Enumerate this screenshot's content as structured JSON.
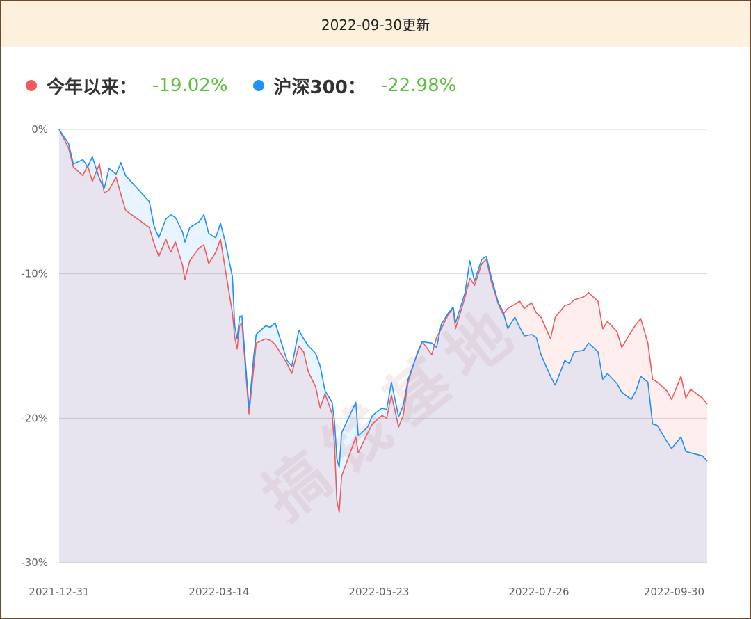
{
  "header": {
    "title": "2022-09-30更新"
  },
  "legend": [
    {
      "label": "今年以来：",
      "value": "-19.02%",
      "color": "#f25b5b"
    },
    {
      "label": "沪深300：",
      "value": "-22.98%",
      "color": "#1e90ff"
    }
  ],
  "watermark": "搞钱基地",
  "colors": {
    "value_text": "#5cbf3d",
    "grid": "#d8d8d8",
    "axis_text": "#666666"
  },
  "chart_data": {
    "type": "line",
    "title": "",
    "xlabel": "",
    "ylabel": "",
    "y_unit": "%",
    "ylim": [
      -30,
      0
    ],
    "y_ticks": [
      0,
      -10,
      -20,
      -30
    ],
    "y_tick_labels": [
      "0%",
      "-10%",
      "-20%",
      "-30%"
    ],
    "x_tick_labels": [
      "2021-12-31",
      "2022-03-14",
      "2022-05-23",
      "2022-07-26",
      "2022-09-30"
    ],
    "x_range": [
      "2021-12-31",
      "2022-09-30"
    ],
    "grid": true,
    "legend_position": "top-left",
    "series": [
      {
        "name": "今年以来",
        "color": "#f25b5b",
        "points": [
          [
            "2021-12-31",
            0.0
          ],
          [
            "2022-01-04",
            -1.3
          ],
          [
            "2022-01-06",
            -2.6
          ],
          [
            "2022-01-10",
            -3.2
          ],
          [
            "2022-01-12",
            -2.5
          ],
          [
            "2022-01-14",
            -3.6
          ],
          [
            "2022-01-17",
            -2.4
          ],
          [
            "2022-01-19",
            -4.4
          ],
          [
            "2022-01-21",
            -4.2
          ],
          [
            "2022-01-24",
            -3.3
          ],
          [
            "2022-01-26",
            -4.5
          ],
          [
            "2022-01-28",
            -5.6
          ],
          [
            "2022-02-07",
            -6.8
          ],
          [
            "2022-02-09",
            -7.9
          ],
          [
            "2022-02-11",
            -8.8
          ],
          [
            "2022-02-14",
            -7.6
          ],
          [
            "2022-02-16",
            -8.5
          ],
          [
            "2022-02-18",
            -7.8
          ],
          [
            "2022-02-21",
            -9.4
          ],
          [
            "2022-02-22",
            -10.4
          ],
          [
            "2022-02-24",
            -9.1
          ],
          [
            "2022-02-28",
            -8.2
          ],
          [
            "2022-03-02",
            -8.0
          ],
          [
            "2022-03-04",
            -9.3
          ],
          [
            "2022-03-07",
            -8.5
          ],
          [
            "2022-03-09",
            -7.6
          ],
          [
            "2022-03-11",
            -9.7
          ],
          [
            "2022-03-14",
            -12.7
          ],
          [
            "2022-03-15",
            -14.4
          ],
          [
            "2022-03-16",
            -15.2
          ],
          [
            "2022-03-17",
            -13.6
          ],
          [
            "2022-03-18",
            -13.4
          ],
          [
            "2022-03-21",
            -19.7
          ],
          [
            "2022-03-23",
            -16.5
          ],
          [
            "2022-03-24",
            -14.8
          ],
          [
            "2022-03-28",
            -14.5
          ],
          [
            "2022-03-30",
            -14.6
          ],
          [
            "2022-04-01",
            -14.9
          ],
          [
            "2022-04-06",
            -16.2
          ],
          [
            "2022-04-08",
            -16.9
          ],
          [
            "2022-04-11",
            -15.0
          ],
          [
            "2022-04-13",
            -15.4
          ],
          [
            "2022-04-15",
            -16.8
          ],
          [
            "2022-04-18",
            -17.8
          ],
          [
            "2022-04-20",
            -19.3
          ],
          [
            "2022-04-22",
            -18.3
          ],
          [
            "2022-04-25",
            -19.7
          ],
          [
            "2022-04-26",
            -21.8
          ],
          [
            "2022-04-27",
            -25.7
          ],
          [
            "2022-04-28",
            -26.5
          ],
          [
            "2022-04-29",
            -24.0
          ],
          [
            "2022-05-05",
            -21.3
          ],
          [
            "2022-05-06",
            -22.4
          ],
          [
            "2022-05-10",
            -21.0
          ],
          [
            "2022-05-12",
            -20.4
          ],
          [
            "2022-05-16",
            -19.8
          ],
          [
            "2022-05-18",
            -20.0
          ],
          [
            "2022-05-20",
            -18.4
          ],
          [
            "2022-05-23",
            -20.6
          ],
          [
            "2022-05-25",
            -19.8
          ],
          [
            "2022-05-27",
            -17.5
          ],
          [
            "2022-05-31",
            -15.4
          ],
          [
            "2022-06-02",
            -14.7
          ],
          [
            "2022-06-06",
            -15.6
          ],
          [
            "2022-06-08",
            -14.4
          ],
          [
            "2022-06-10",
            -13.8
          ],
          [
            "2022-06-13",
            -12.8
          ],
          [
            "2022-06-15",
            -12.4
          ],
          [
            "2022-06-16",
            -13.8
          ],
          [
            "2022-06-20",
            -11.6
          ],
          [
            "2022-06-22",
            -10.3
          ],
          [
            "2022-06-24",
            -10.8
          ],
          [
            "2022-06-27",
            -9.3
          ],
          [
            "2022-06-29",
            -9.0
          ],
          [
            "2022-07-01",
            -10.5
          ],
          [
            "2022-07-04",
            -12.1
          ],
          [
            "2022-07-06",
            -12.8
          ],
          [
            "2022-07-08",
            -12.4
          ],
          [
            "2022-07-11",
            -12.1
          ],
          [
            "2022-07-13",
            -11.9
          ],
          [
            "2022-07-15",
            -12.4
          ],
          [
            "2022-07-18",
            -12.0
          ],
          [
            "2022-07-20",
            -12.7
          ],
          [
            "2022-07-22",
            -13.0
          ],
          [
            "2022-07-26",
            -14.5
          ],
          [
            "2022-07-28",
            -13.0
          ],
          [
            "2022-08-01",
            -12.2
          ],
          [
            "2022-08-03",
            -12.1
          ],
          [
            "2022-08-05",
            -11.8
          ],
          [
            "2022-08-09",
            -11.6
          ],
          [
            "2022-08-11",
            -11.3
          ],
          [
            "2022-08-15",
            -11.9
          ],
          [
            "2022-08-17",
            -13.8
          ],
          [
            "2022-08-19",
            -13.3
          ],
          [
            "2022-08-23",
            -14.0
          ],
          [
            "2022-08-25",
            -15.1
          ],
          [
            "2022-08-29",
            -14.0
          ],
          [
            "2022-08-31",
            -13.5
          ],
          [
            "2022-09-02",
            -13.1
          ],
          [
            "2022-09-05",
            -14.8
          ],
          [
            "2022-09-07",
            -17.3
          ],
          [
            "2022-09-09",
            -17.5
          ],
          [
            "2022-09-13",
            -18.1
          ],
          [
            "2022-09-15",
            -18.7
          ],
          [
            "2022-09-19",
            -17.1
          ],
          [
            "2022-09-21",
            -18.6
          ],
          [
            "2022-09-23",
            -18.0
          ],
          [
            "2022-09-28",
            -18.6
          ],
          [
            "2022-09-30",
            -19.02
          ]
        ]
      },
      {
        "name": "沪深300",
        "color": "#1e90ff",
        "points": [
          [
            "2021-12-31",
            0.0
          ],
          [
            "2022-01-04",
            -1.0
          ],
          [
            "2022-01-06",
            -2.4
          ],
          [
            "2022-01-10",
            -2.1
          ],
          [
            "2022-01-12",
            -2.6
          ],
          [
            "2022-01-14",
            -1.9
          ],
          [
            "2022-01-17",
            -3.4
          ],
          [
            "2022-01-19",
            -4.1
          ],
          [
            "2022-01-21",
            -2.7
          ],
          [
            "2022-01-24",
            -3.1
          ],
          [
            "2022-01-26",
            -2.3
          ],
          [
            "2022-01-28",
            -3.2
          ],
          [
            "2022-02-07",
            -5.0
          ],
          [
            "2022-02-09",
            -6.7
          ],
          [
            "2022-02-11",
            -7.5
          ],
          [
            "2022-02-14",
            -6.2
          ],
          [
            "2022-02-16",
            -5.9
          ],
          [
            "2022-02-18",
            -6.1
          ],
          [
            "2022-02-21",
            -7.1
          ],
          [
            "2022-02-22",
            -7.8
          ],
          [
            "2022-02-24",
            -6.8
          ],
          [
            "2022-02-28",
            -6.4
          ],
          [
            "2022-03-02",
            -5.9
          ],
          [
            "2022-03-04",
            -7.2
          ],
          [
            "2022-03-07",
            -7.5
          ],
          [
            "2022-03-09",
            -6.5
          ],
          [
            "2022-03-11",
            -7.8
          ],
          [
            "2022-03-14",
            -10.2
          ],
          [
            "2022-03-15",
            -13.6
          ],
          [
            "2022-03-16",
            -14.5
          ],
          [
            "2022-03-17",
            -13.0
          ],
          [
            "2022-03-18",
            -12.9
          ],
          [
            "2022-03-21",
            -19.3
          ],
          [
            "2022-03-23",
            -15.7
          ],
          [
            "2022-03-24",
            -14.2
          ],
          [
            "2022-03-28",
            -13.6
          ],
          [
            "2022-03-30",
            -13.7
          ],
          [
            "2022-04-01",
            -13.4
          ],
          [
            "2022-04-06",
            -16.0
          ],
          [
            "2022-04-08",
            -16.4
          ],
          [
            "2022-04-11",
            -13.9
          ],
          [
            "2022-04-13",
            -14.5
          ],
          [
            "2022-04-15",
            -15.0
          ],
          [
            "2022-04-18",
            -15.5
          ],
          [
            "2022-04-20",
            -16.4
          ],
          [
            "2022-04-22",
            -18.1
          ],
          [
            "2022-04-25",
            -18.9
          ],
          [
            "2022-04-26",
            -20.2
          ],
          [
            "2022-04-27",
            -22.8
          ],
          [
            "2022-04-28",
            -23.4
          ],
          [
            "2022-04-29",
            -21.0
          ],
          [
            "2022-05-05",
            -18.9
          ],
          [
            "2022-05-06",
            -21.2
          ],
          [
            "2022-05-10",
            -20.6
          ],
          [
            "2022-05-12",
            -19.8
          ],
          [
            "2022-05-16",
            -19.3
          ],
          [
            "2022-05-18",
            -19.4
          ],
          [
            "2022-05-20",
            -17.5
          ],
          [
            "2022-05-23",
            -19.9
          ],
          [
            "2022-05-25",
            -19.1
          ],
          [
            "2022-05-27",
            -17.3
          ],
          [
            "2022-05-31",
            -15.5
          ],
          [
            "2022-06-02",
            -14.7
          ],
          [
            "2022-06-06",
            -14.8
          ],
          [
            "2022-06-08",
            -15.1
          ],
          [
            "2022-06-10",
            -13.5
          ],
          [
            "2022-06-13",
            -12.7
          ],
          [
            "2022-06-15",
            -12.3
          ],
          [
            "2022-06-16",
            -13.4
          ],
          [
            "2022-06-20",
            -11.3
          ],
          [
            "2022-06-22",
            -9.1
          ],
          [
            "2022-06-24",
            -10.5
          ],
          [
            "2022-06-27",
            -9.0
          ],
          [
            "2022-06-29",
            -8.8
          ],
          [
            "2022-07-01",
            -10.2
          ],
          [
            "2022-07-04",
            -12.0
          ],
          [
            "2022-07-06",
            -12.6
          ],
          [
            "2022-07-08",
            -13.8
          ],
          [
            "2022-07-11",
            -13.0
          ],
          [
            "2022-07-13",
            -13.7
          ],
          [
            "2022-07-15",
            -14.3
          ],
          [
            "2022-07-18",
            -14.2
          ],
          [
            "2022-07-20",
            -14.4
          ],
          [
            "2022-07-22",
            -15.6
          ],
          [
            "2022-07-26",
            -17.1
          ],
          [
            "2022-07-28",
            -17.7
          ],
          [
            "2022-08-01",
            -16.0
          ],
          [
            "2022-08-03",
            -16.2
          ],
          [
            "2022-08-05",
            -15.4
          ],
          [
            "2022-08-09",
            -15.3
          ],
          [
            "2022-08-11",
            -14.8
          ],
          [
            "2022-08-15",
            -15.4
          ],
          [
            "2022-08-17",
            -17.3
          ],
          [
            "2022-08-19",
            -16.9
          ],
          [
            "2022-08-23",
            -17.6
          ],
          [
            "2022-08-25",
            -18.2
          ],
          [
            "2022-08-29",
            -18.7
          ],
          [
            "2022-08-31",
            -18.1
          ],
          [
            "2022-09-02",
            -17.1
          ],
          [
            "2022-09-05",
            -17.5
          ],
          [
            "2022-09-07",
            -20.4
          ],
          [
            "2022-09-09",
            -20.5
          ],
          [
            "2022-09-13",
            -21.6
          ],
          [
            "2022-09-15",
            -22.1
          ],
          [
            "2022-09-19",
            -21.3
          ],
          [
            "2022-09-21",
            -22.3
          ],
          [
            "2022-09-23",
            -22.4
          ],
          [
            "2022-09-28",
            -22.6
          ],
          [
            "2022-09-30",
            -22.98
          ]
        ]
      }
    ]
  }
}
